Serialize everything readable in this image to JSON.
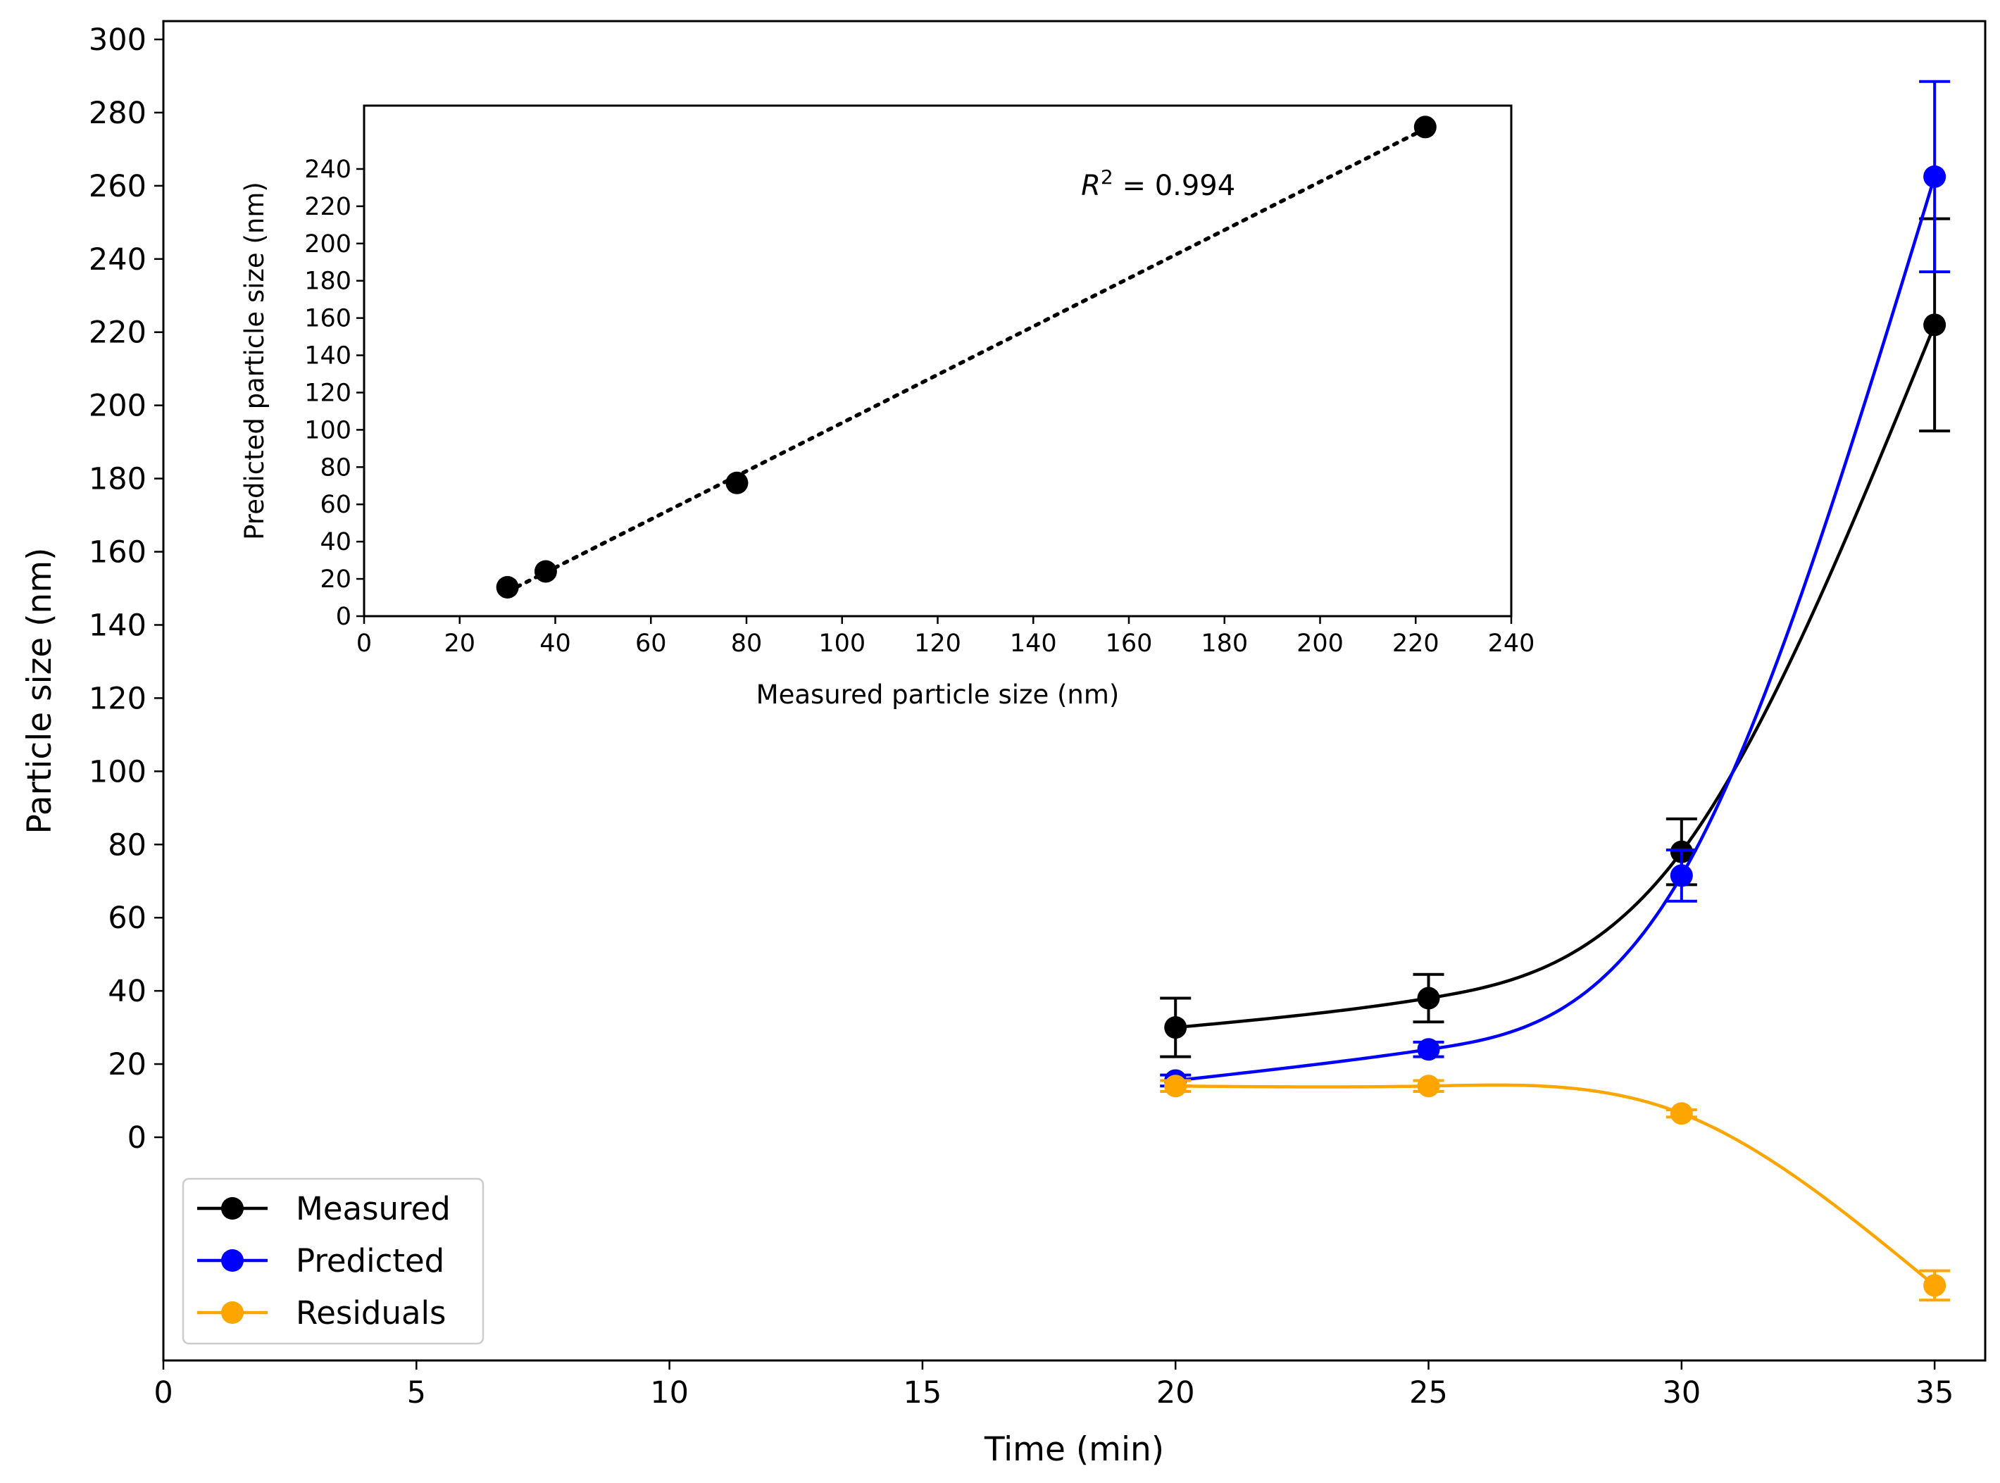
{
  "chart_data": [
    {
      "type": "line",
      "role": "main",
      "xlabel": "Time (min)",
      "ylabel": "Particle size (nm)",
      "xlim": [
        0,
        36
      ],
      "ylim": [
        -61,
        305
      ],
      "xticks": [
        0,
        5,
        10,
        15,
        20,
        25,
        30,
        35
      ],
      "yticks": [
        0,
        20,
        40,
        60,
        80,
        100,
        120,
        140,
        160,
        180,
        200,
        220,
        240,
        260,
        280,
        300
      ],
      "legend_position": "lower-left",
      "x": [
        20,
        25,
        30,
        35
      ],
      "series": [
        {
          "name": "Measured",
          "color": "#000000",
          "values": [
            30,
            38,
            78,
            222
          ],
          "errors": [
            8,
            6.5,
            9,
            29
          ]
        },
        {
          "name": "Predicted",
          "color": "#0000ff",
          "values": [
            15.5,
            24,
            71.5,
            262.5
          ],
          "errors": [
            1.5,
            2,
            7,
            26
          ]
        },
        {
          "name": "Residuals",
          "color": "#ffa500",
          "values": [
            14,
            14,
            6.5,
            -40.5
          ],
          "errors": [
            1.5,
            1.5,
            1,
            4
          ]
        }
      ]
    },
    {
      "type": "scatter",
      "role": "inset",
      "xlabel": "Measured particle size (nm)",
      "ylabel": "Predicted particle size (nm)",
      "xlim": [
        0,
        240
      ],
      "ylim": [
        0,
        274
      ],
      "xticks": [
        0,
        20,
        40,
        60,
        80,
        100,
        120,
        140,
        160,
        180,
        200,
        220,
        240
      ],
      "yticks": [
        0,
        20,
        40,
        60,
        80,
        100,
        120,
        140,
        160,
        180,
        200,
        220,
        240
      ],
      "x": [
        30,
        38,
        78,
        222
      ],
      "y": [
        15.5,
        24,
        71.5,
        262.5
      ],
      "fit_line": "dotted",
      "annotation": {
        "base": "R",
        "superscript": "2",
        "text": " = 0.994",
        "at": [
          150,
          226
        ]
      }
    }
  ]
}
